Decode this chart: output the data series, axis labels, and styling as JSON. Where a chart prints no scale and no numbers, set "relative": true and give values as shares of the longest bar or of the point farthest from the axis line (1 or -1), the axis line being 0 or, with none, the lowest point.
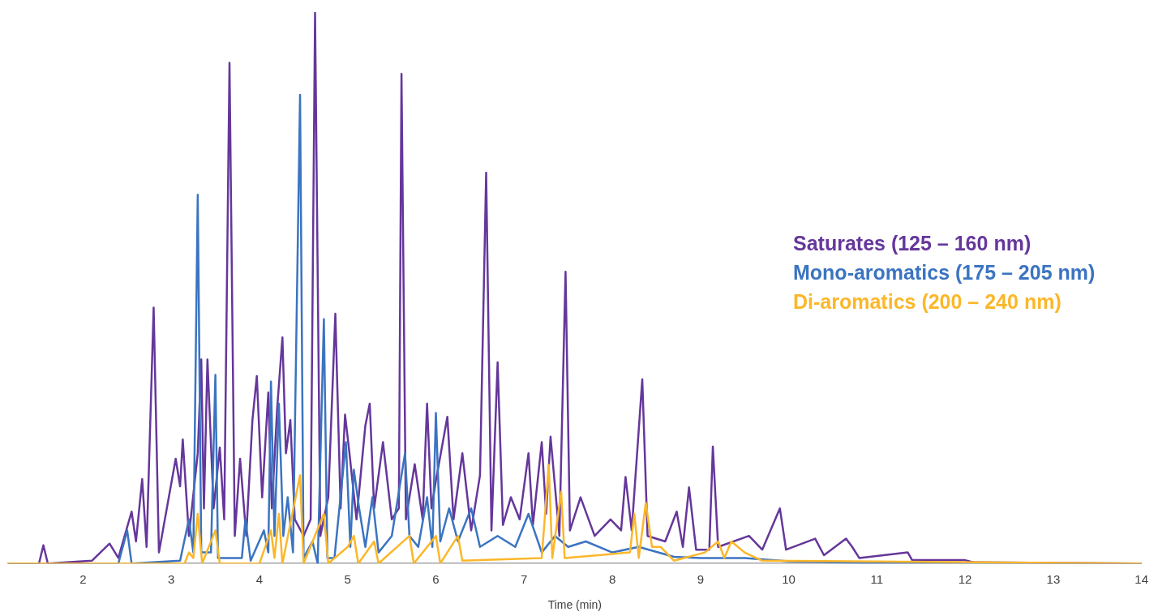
{
  "chart_data": {
    "type": "line",
    "xlabel": "Time (min)",
    "relative": true,
    "xlim": [
      1.15,
      14
    ],
    "xticks": [
      2,
      3,
      4,
      5,
      6,
      7,
      8,
      9,
      10,
      11,
      12,
      13,
      14
    ],
    "legend": "right",
    "marker": "none",
    "grid": false,
    "series": [
      {
        "name": "Saturates (125 – 160 nm)",
        "color": "#65379b",
        "x": [
          1.15,
          1.5,
          1.55,
          1.6,
          2.1,
          2.3,
          2.4,
          2.55,
          2.6,
          2.67,
          2.72,
          2.8,
          2.86,
          3.05,
          3.1,
          3.13,
          3.2,
          3.3,
          3.34,
          3.37,
          3.41,
          3.48,
          3.55,
          3.6,
          3.66,
          3.72,
          3.78,
          3.85,
          3.92,
          3.97,
          4.03,
          4.1,
          4.14,
          4.2,
          4.26,
          4.3,
          4.35,
          4.4,
          4.5,
          4.58,
          4.63,
          4.69,
          4.78,
          4.86,
          4.92,
          4.97,
          5.02,
          5.1,
          5.2,
          5.25,
          5.3,
          5.4,
          5.5,
          5.58,
          5.61,
          5.66,
          5.76,
          5.85,
          5.9,
          5.95,
          6.0,
          6.13,
          6.2,
          6.3,
          6.4,
          6.5,
          6.57,
          6.63,
          6.7,
          6.76,
          6.85,
          6.95,
          7.05,
          7.1,
          7.2,
          7.25,
          7.3,
          7.4,
          7.47,
          7.52,
          7.64,
          7.8,
          7.98,
          8.1,
          8.15,
          8.22,
          8.34,
          8.4,
          8.6,
          8.73,
          8.8,
          8.87,
          8.95,
          9.1,
          9.14,
          9.2,
          9.55,
          9.7,
          9.9,
          9.97,
          10.3,
          10.4,
          10.65,
          10.72,
          10.8,
          11.35,
          11.4,
          12.0,
          12.1,
          14
        ],
        "values": [
          0,
          0,
          0.033,
          0,
          0.005,
          0.036,
          0.01,
          0.094,
          0.04,
          0.153,
          0.03,
          0.464,
          0.02,
          0.19,
          0.14,
          0.225,
          0.05,
          0.2,
          0.37,
          0.1,
          0.37,
          0.1,
          0.21,
          0.08,
          0.908,
          0.05,
          0.19,
          0.05,
          0.26,
          0.34,
          0.12,
          0.31,
          0.1,
          0.28,
          0.41,
          0.2,
          0.26,
          0.08,
          0.05,
          0.08,
          1,
          0.05,
          0.12,
          0.453,
          0.1,
          0.27,
          0.2,
          0.08,
          0.25,
          0.29,
          0.1,
          0.22,
          0.08,
          0.1,
          0.888,
          0.08,
          0.18,
          0.08,
          0.29,
          0.1,
          0.15,
          0.266,
          0.08,
          0.2,
          0.06,
          0.16,
          0.709,
          0.06,
          0.365,
          0.07,
          0.12,
          0.08,
          0.2,
          0.07,
          0.22,
          0.09,
          0.23,
          0.05,
          0.529,
          0.06,
          0.12,
          0.05,
          0.08,
          0.06,
          0.157,
          0.06,
          0.334,
          0.05,
          0.04,
          0.094,
          0.03,
          0.138,
          0.025,
          0.025,
          0.212,
          0.03,
          0.05,
          0.025,
          0.1,
          0.025,
          0.045,
          0.015,
          0.045,
          0.03,
          0.01,
          0.02,
          0.006,
          0.006,
          0.002,
          0
        ]
      },
      {
        "name": "Mono-aromatics (175 – 205 nm)",
        "color": "#3b74c1",
        "x": [
          1.15,
          2.4,
          2.5,
          2.55,
          3.1,
          3.2,
          3.25,
          3.3,
          3.34,
          3.45,
          3.5,
          3.53,
          3.8,
          3.84,
          3.9,
          4.05,
          4.1,
          4.13,
          4.17,
          4.22,
          4.27,
          4.32,
          4.38,
          4.46,
          4.5,
          4.6,
          4.66,
          4.73,
          4.77,
          4.85,
          4.98,
          5.03,
          5.07,
          5.13,
          5.2,
          5.28,
          5.35,
          5.5,
          5.65,
          5.7,
          5.8,
          5.9,
          5.96,
          6.0,
          6.05,
          6.15,
          6.25,
          6.4,
          6.5,
          6.7,
          6.9,
          7.05,
          7.2,
          7.35,
          7.5,
          7.7,
          8.0,
          8.3,
          8.7,
          9.0,
          9.5,
          10,
          11,
          14
        ],
        "values": [
          0,
          0,
          0.06,
          0,
          0.005,
          0.08,
          0.02,
          0.669,
          0.02,
          0.02,
          0.342,
          0.01,
          0.01,
          0.08,
          0.005,
          0.06,
          0.02,
          0.33,
          0.05,
          0.29,
          0.05,
          0.12,
          0.02,
          0.85,
          0.01,
          0.04,
          0,
          0.443,
          0.01,
          0.01,
          0.22,
          0.03,
          0.17,
          0.1,
          0.03,
          0.12,
          0.02,
          0.05,
          0.2,
          0.05,
          0.03,
          0.12,
          0.03,
          0.273,
          0.04,
          0.1,
          0.04,
          0.1,
          0.03,
          0.05,
          0.03,
          0.09,
          0.02,
          0.05,
          0.03,
          0.04,
          0.02,
          0.03,
          0.012,
          0.01,
          0.01,
          0.004,
          0,
          0
        ]
      },
      {
        "name": "Di-aromatics (200 – 240 nm)",
        "color": "#fbb72a",
        "x": [
          1.15,
          3.15,
          3.2,
          3.25,
          3.3,
          3.35,
          3.5,
          3.55,
          4.0,
          4.13,
          4.17,
          4.22,
          4.26,
          4.46,
          4.5,
          4.73,
          4.78,
          5.0,
          5.07,
          5.12,
          5.3,
          5.35,
          5.7,
          5.75,
          6.0,
          6.05,
          6.25,
          6.3,
          7.2,
          7.28,
          7.32,
          7.42,
          7.46,
          8.2,
          8.25,
          8.3,
          8.38,
          8.45,
          8.55,
          8.7,
          9.05,
          9.2,
          9.27,
          9.35,
          9.5,
          9.7,
          14
        ],
        "values": [
          0,
          0,
          0.02,
          0.01,
          0.09,
          0,
          0.06,
          0,
          0,
          0.06,
          0.01,
          0.09,
          0,
          0.16,
          0,
          0.09,
          0,
          0.03,
          0.05,
          0,
          0.04,
          0,
          0.05,
          0,
          0.05,
          0,
          0.05,
          0.005,
          0.01,
          0.179,
          0.01,
          0.13,
          0.01,
          0.02,
          0.09,
          0.01,
          0.11,
          0.03,
          0.03,
          0.005,
          0.02,
          0.04,
          0.01,
          0.04,
          0.02,
          0.005,
          0
        ]
      }
    ]
  }
}
